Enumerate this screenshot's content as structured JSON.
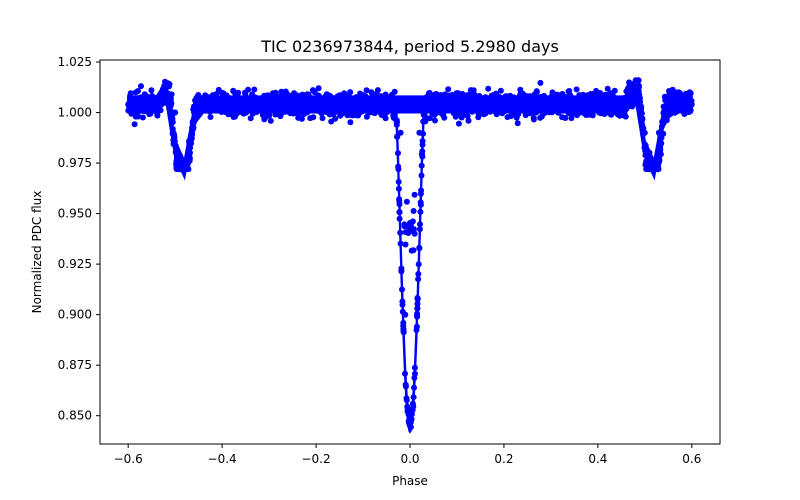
{
  "chart_data": {
    "type": "scatter",
    "title": "TIC 0236973844, period 5.2980 days",
    "xlabel": "Phase",
    "ylabel": "Normalized PDC flux",
    "xlim": [
      -0.66,
      0.66
    ],
    "ylim": [
      0.836,
      1.026
    ],
    "xticks": [
      -0.6,
      -0.4,
      -0.2,
      0.0,
      0.2,
      0.4,
      0.6
    ],
    "xtick_labels": [
      "−0.6",
      "−0.4",
      "−0.2",
      "0.0",
      "0.2",
      "0.4",
      "0.6"
    ],
    "yticks": [
      0.85,
      0.875,
      0.9,
      0.925,
      0.95,
      0.975,
      1.0,
      1.025
    ],
    "ytick_labels": [
      "0.850",
      "0.875",
      "0.900",
      "0.925",
      "0.950",
      "0.975",
      "1.000",
      "1.025"
    ],
    "grid": false,
    "series": [
      {
        "color": "#0000ff",
        "x_range": [
          -0.6,
          0.6
        ],
        "baseline_flux": 1.004,
        "primary_eclipse": {
          "center_phase": 0.0,
          "min_flux": 0.845,
          "secondary_branch_flux": 0.94
        },
        "secondary_eclipses": [
          {
            "center_phase": -0.485,
            "min_flux": 0.972
          },
          {
            "center_phase": 0.515,
            "min_flux": 0.972
          }
        ],
        "points": [
          [
            -0.6,
            1.004
          ],
          [
            -0.55,
            1.007
          ],
          [
            -0.52,
            1.012
          ],
          [
            -0.5,
            1.0
          ],
          [
            -0.49,
            0.975
          ],
          [
            -0.48,
            0.972
          ],
          [
            -0.47,
            0.985
          ],
          [
            -0.46,
            1.003
          ],
          [
            -0.4,
            1.003
          ],
          [
            -0.3,
            1.004
          ],
          [
            -0.2,
            1.002
          ],
          [
            -0.1,
            1.004
          ],
          [
            -0.05,
            1.006
          ],
          [
            -0.02,
            0.99
          ],
          [
            -0.01,
            0.9
          ],
          [
            0.0,
            0.845
          ],
          [
            0.01,
            0.94
          ],
          [
            0.02,
            0.99
          ],
          [
            0.03,
            1.005
          ],
          [
            0.1,
            1.004
          ],
          [
            0.2,
            1.003
          ],
          [
            0.3,
            1.004
          ],
          [
            0.4,
            1.005
          ],
          [
            0.48,
            1.013
          ],
          [
            0.5,
            0.99
          ],
          [
            0.51,
            0.972
          ],
          [
            0.52,
            0.972
          ],
          [
            0.53,
            0.99
          ],
          [
            0.54,
            1.003
          ],
          [
            0.6,
            1.004
          ]
        ]
      }
    ]
  }
}
